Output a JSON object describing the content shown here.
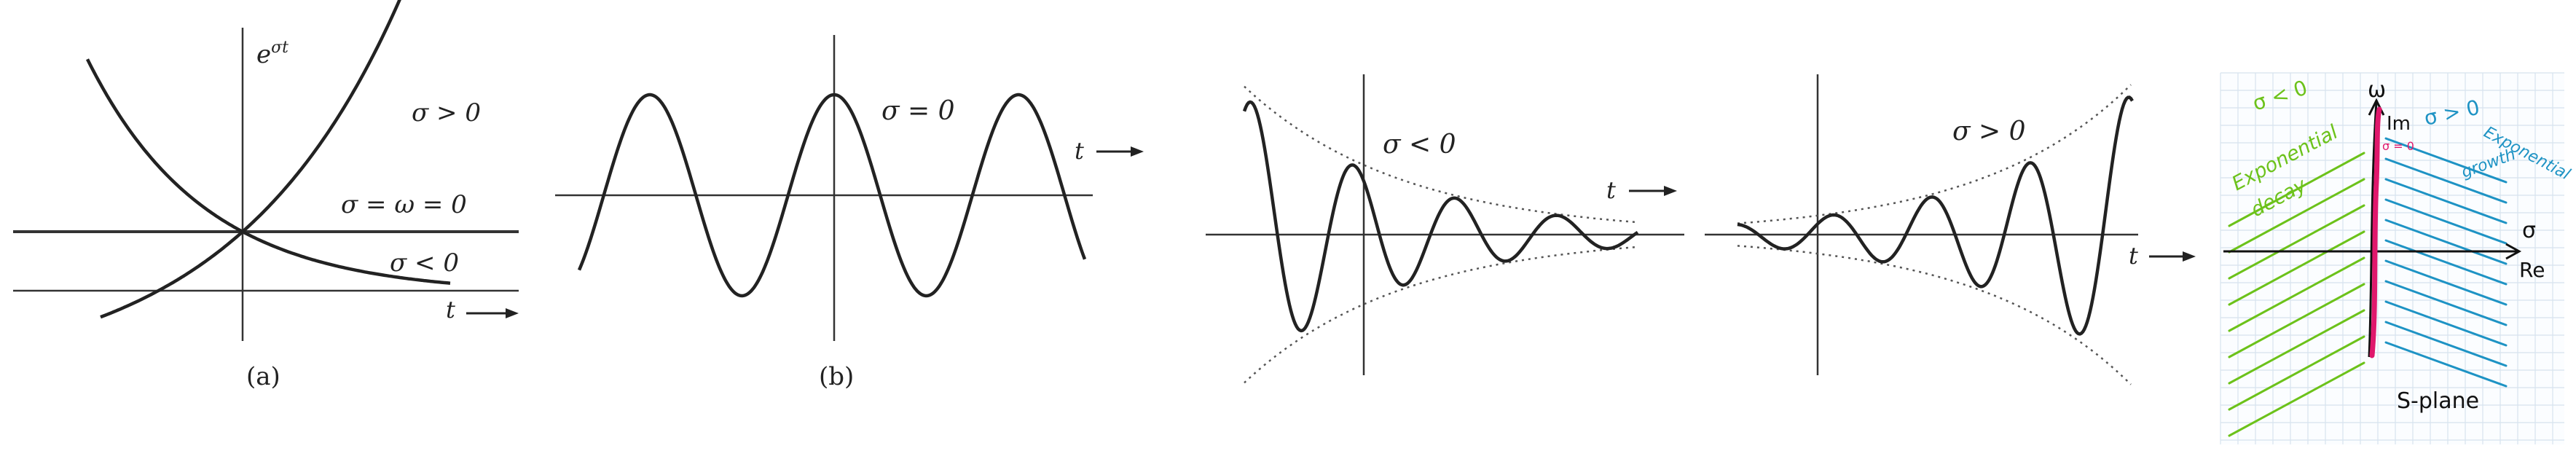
{
  "panel_a": {
    "exp_label": "e",
    "exp_superscript": "σt",
    "label_growth": "σ > 0",
    "label_const": "σ = ω = 0",
    "label_decay": "σ < 0",
    "axis_t": "t",
    "caption": "(a)"
  },
  "panel_b": {
    "label": "σ = 0",
    "axis_t": "t",
    "caption": "(b)"
  },
  "panel_c": {
    "label": "σ < 0",
    "axis_t": "t"
  },
  "panel_d": {
    "label": "σ > 0",
    "axis_t": "t"
  },
  "panel_e": {
    "omega_label": "ω",
    "im_label": "Im",
    "sigma_label": "σ",
    "re_label": "Re",
    "left_sigma_note": "σ < 0",
    "left_note_line1": "Exponential",
    "left_note_line2": "decay",
    "right_sigma_note": "σ > 0",
    "right_note_line1": "Exponential",
    "right_note_line2": "growth",
    "axis_note": "σ = 0",
    "caption": "S-plane",
    "colors": {
      "decay": "#6cc21a",
      "growth": "#1e93c4",
      "axis_mark": "#e0186c",
      "grid": "#d7e3ee"
    }
  }
}
